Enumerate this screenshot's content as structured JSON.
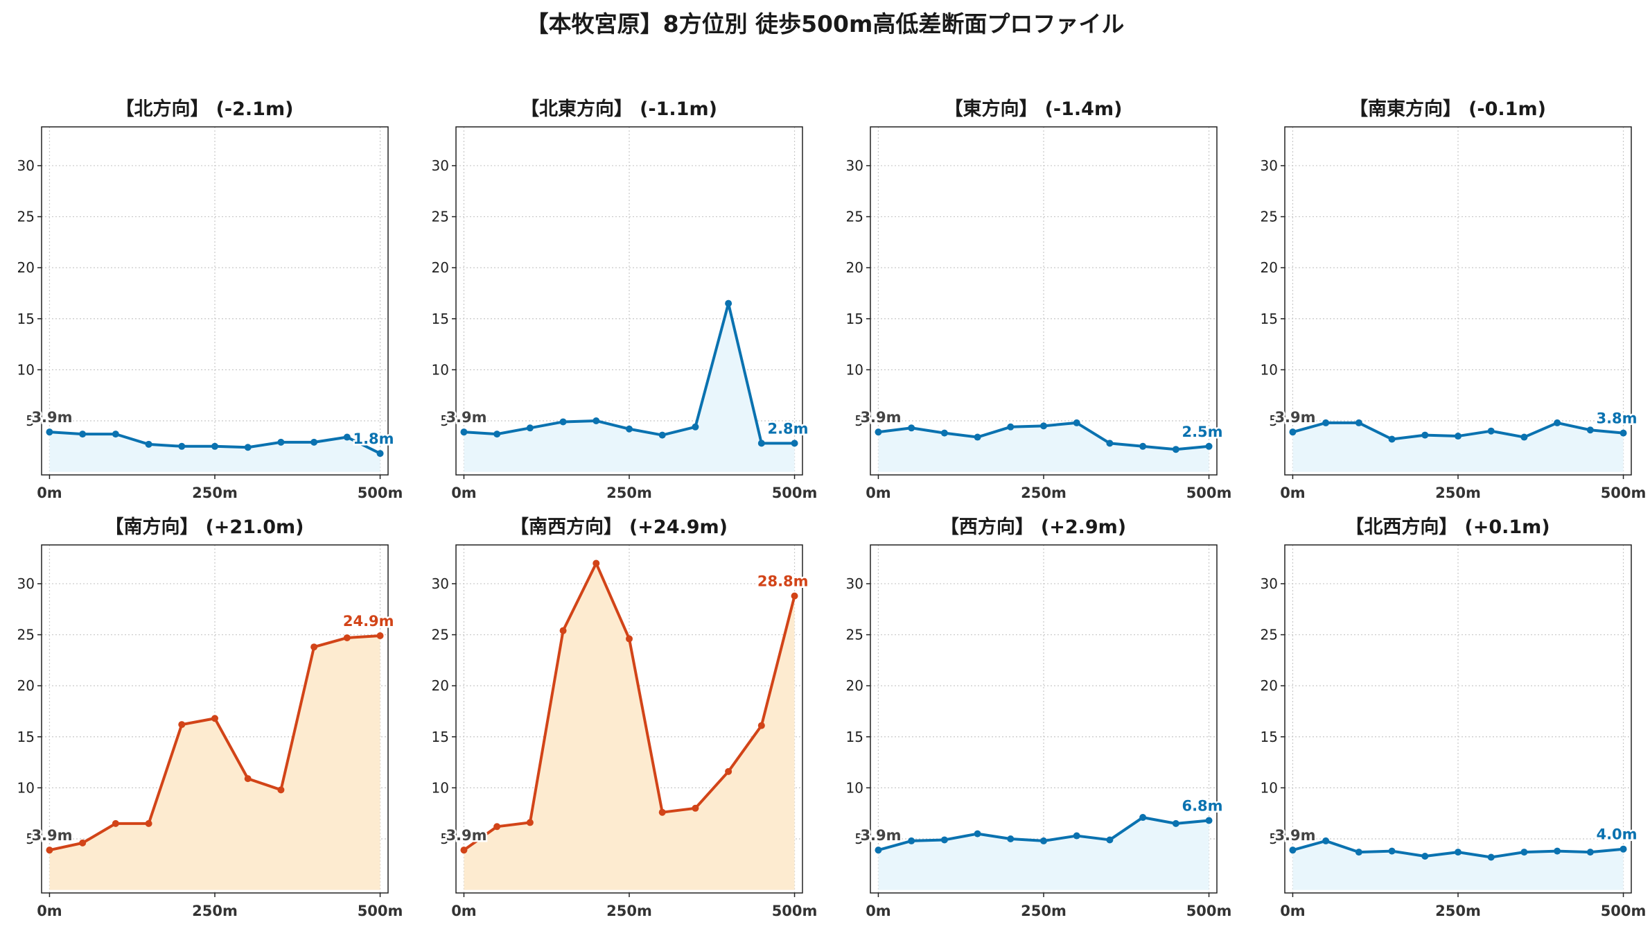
{
  "title": "【本牧宮原】8方位別 徒歩500m高低差断面プロファイル",
  "colors": {
    "down": "#0a72b0",
    "up": "#d24418",
    "down_fill": "#e9f6fc",
    "up_fill": "#fdebd0",
    "grid": "#c8c8c8",
    "start_label": "#444444"
  },
  "chart_data": [
    {
      "type": "line",
      "title": "【北方向】",
      "delta": "(-2.1m)",
      "trend": "down",
      "x": [
        0,
        50,
        100,
        150,
        200,
        250,
        300,
        350,
        400,
        450,
        500
      ],
      "values": [
        3.9,
        3.7,
        3.7,
        2.7,
        2.5,
        2.5,
        2.4,
        2.9,
        2.9,
        3.4,
        1.8
      ],
      "start_label": "3.9m",
      "end_label": "1.8m",
      "xticks": [
        "0m",
        "250m",
        "500m"
      ],
      "yticks": [
        5,
        10,
        15,
        20,
        25,
        30
      ],
      "ylim": [
        -0.3,
        33.8
      ],
      "xlim": [
        -12,
        512
      ],
      "grid": true
    },
    {
      "type": "line",
      "title": "【北東方向】",
      "delta": "(-1.1m)",
      "trend": "down",
      "x": [
        0,
        50,
        100,
        150,
        200,
        250,
        300,
        350,
        400,
        450,
        500
      ],
      "values": [
        3.9,
        3.7,
        4.3,
        4.9,
        5.0,
        4.2,
        3.6,
        4.4,
        16.5,
        2.8,
        2.8
      ],
      "start_label": "3.9m",
      "end_label": "2.8m",
      "xticks": [
        "0m",
        "250m",
        "500m"
      ],
      "yticks": [
        5,
        10,
        15,
        20,
        25,
        30
      ],
      "ylim": [
        -0.3,
        33.8
      ],
      "xlim": [
        -12,
        512
      ],
      "grid": true
    },
    {
      "type": "line",
      "title": "【東方向】",
      "delta": "(-1.4m)",
      "trend": "down",
      "x": [
        0,
        50,
        100,
        150,
        200,
        250,
        300,
        350,
        400,
        450,
        500
      ],
      "values": [
        3.9,
        4.3,
        3.8,
        3.4,
        4.4,
        4.5,
        4.8,
        2.8,
        2.5,
        2.2,
        2.5
      ],
      "start_label": "3.9m",
      "end_label": "2.5m",
      "xticks": [
        "0m",
        "250m",
        "500m"
      ],
      "yticks": [
        5,
        10,
        15,
        20,
        25,
        30
      ],
      "ylim": [
        -0.3,
        33.8
      ],
      "xlim": [
        -12,
        512
      ],
      "grid": true
    },
    {
      "type": "line",
      "title": "【南東方向】",
      "delta": "(-0.1m)",
      "trend": "down",
      "x": [
        0,
        50,
        100,
        150,
        200,
        250,
        300,
        350,
        400,
        450,
        500
      ],
      "values": [
        3.9,
        4.8,
        4.8,
        3.2,
        3.6,
        3.5,
        4.0,
        3.4,
        4.8,
        4.1,
        3.8
      ],
      "start_label": "3.9m",
      "end_label": "3.8m",
      "xticks": [
        "0m",
        "250m",
        "500m"
      ],
      "yticks": [
        5,
        10,
        15,
        20,
        25,
        30
      ],
      "ylim": [
        -0.3,
        33.8
      ],
      "xlim": [
        -12,
        512
      ],
      "grid": true
    },
    {
      "type": "line",
      "title": "【南方向】",
      "delta": "(+21.0m)",
      "trend": "up",
      "x": [
        0,
        50,
        100,
        150,
        200,
        250,
        300,
        350,
        400,
        450,
        500
      ],
      "values": [
        3.9,
        4.6,
        6.5,
        6.5,
        16.2,
        16.8,
        10.9,
        9.8,
        23.8,
        24.7,
        24.9
      ],
      "start_label": "3.9m",
      "end_label": "24.9m",
      "xticks": [
        "0m",
        "250m",
        "500m"
      ],
      "yticks": [
        5,
        10,
        15,
        20,
        25,
        30
      ],
      "ylim": [
        -0.3,
        33.8
      ],
      "xlim": [
        -12,
        512
      ],
      "grid": true
    },
    {
      "type": "line",
      "title": "【南西方向】",
      "delta": "(+24.9m)",
      "trend": "up",
      "x": [
        0,
        50,
        100,
        150,
        200,
        250,
        300,
        350,
        400,
        450,
        500
      ],
      "values": [
        3.9,
        6.2,
        6.6,
        25.4,
        32.0,
        24.6,
        7.6,
        8.0,
        11.6,
        16.1,
        28.8
      ],
      "start_label": "3.9m",
      "end_label": "28.8m",
      "xticks": [
        "0m",
        "250m",
        "500m"
      ],
      "yticks": [
        5,
        10,
        15,
        20,
        25,
        30
      ],
      "ylim": [
        -0.3,
        33.8
      ],
      "xlim": [
        -12,
        512
      ],
      "grid": true
    },
    {
      "type": "line",
      "title": "【西方向】",
      "delta": "(+2.9m)",
      "trend": "down",
      "x": [
        0,
        50,
        100,
        150,
        200,
        250,
        300,
        350,
        400,
        450,
        500
      ],
      "values": [
        3.9,
        4.8,
        4.9,
        5.5,
        5.0,
        4.8,
        5.3,
        4.9,
        7.1,
        6.5,
        6.8
      ],
      "start_label": "3.9m",
      "end_label": "6.8m",
      "xticks": [
        "0m",
        "250m",
        "500m"
      ],
      "yticks": [
        5,
        10,
        15,
        20,
        25,
        30
      ],
      "ylim": [
        -0.3,
        33.8
      ],
      "xlim": [
        -12,
        512
      ],
      "grid": true
    },
    {
      "type": "line",
      "title": "【北西方向】",
      "delta": "(+0.1m)",
      "trend": "down",
      "x": [
        0,
        50,
        100,
        150,
        200,
        250,
        300,
        350,
        400,
        450,
        500
      ],
      "values": [
        3.9,
        4.8,
        3.7,
        3.8,
        3.3,
        3.7,
        3.2,
        3.7,
        3.8,
        3.7,
        4.0
      ],
      "start_label": "3.9m",
      "end_label": "4.0m",
      "xticks": [
        "0m",
        "250m",
        "500m"
      ],
      "yticks": [
        5,
        10,
        15,
        20,
        25,
        30
      ],
      "ylim": [
        -0.3,
        33.8
      ],
      "xlim": [
        -12,
        512
      ],
      "grid": true
    }
  ]
}
